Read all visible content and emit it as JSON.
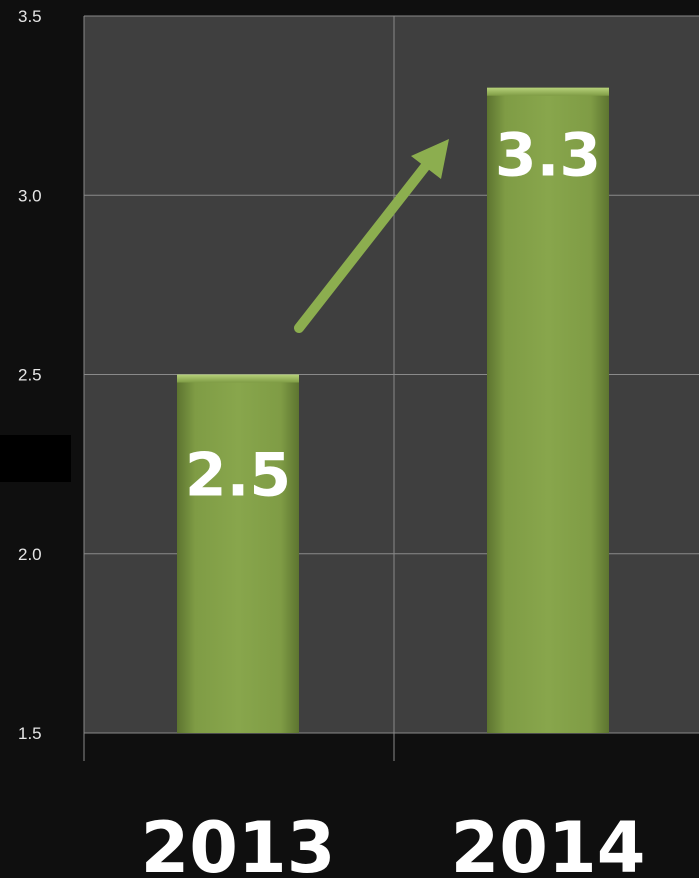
{
  "chart_data": {
    "type": "bar",
    "categories": [
      "2013",
      "2014"
    ],
    "values": [
      2.5,
      3.3
    ],
    "data_labels": [
      "2.5",
      "3.3"
    ],
    "yticks": [
      "1.5",
      "2.0",
      "2.5",
      "3.0",
      "3.5"
    ],
    "ylim": [
      1.5,
      3.5
    ],
    "grid": true,
    "title": "",
    "xlabel": "",
    "ylabel": "",
    "colors": {
      "bar": "#7f9c45",
      "bar_highlight": "#9bb85f",
      "bar_shadow": "#5d7430",
      "arrow": "#8cae4f",
      "plot_background": "#3f3f3f",
      "page_background": "#0f0f0f",
      "gridline": "#8a8a8a"
    }
  }
}
